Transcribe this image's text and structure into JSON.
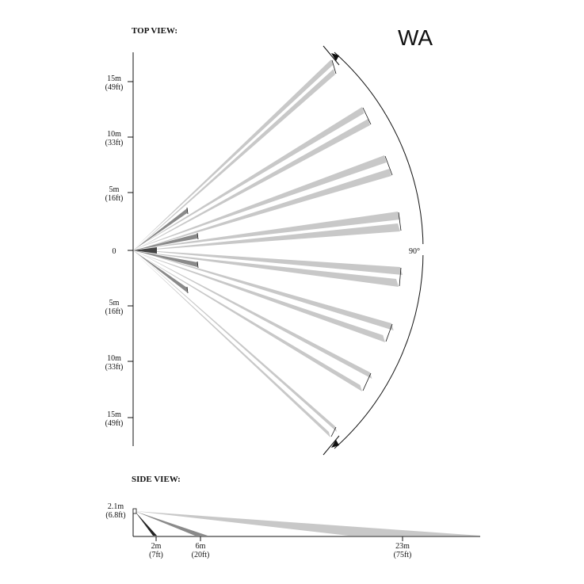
{
  "model_code": "WA",
  "top_view": {
    "heading": "TOP VIEW:",
    "angle_label": "90°",
    "ticks": [
      {
        "m": "15m",
        "ft": "(49ft)"
      },
      {
        "m": "10m",
        "ft": "(33ft)"
      },
      {
        "m": "5m",
        "ft": "(16ft)"
      },
      {
        "m": "0",
        "ft": ""
      },
      {
        "m": "5m",
        "ft": "(16ft)"
      },
      {
        "m": "10m",
        "ft": "(33ft)"
      },
      {
        "m": "15m",
        "ft": "(49ft)"
      }
    ]
  },
  "side_view": {
    "heading": "SIDE VIEW:",
    "mount_height": {
      "m": "2.1m",
      "ft": "(6.8ft)"
    },
    "ranges": [
      {
        "m": "2m",
        "ft": "(7ft)"
      },
      {
        "m": "6m",
        "ft": "(20ft)"
      },
      {
        "m": "23m",
        "ft": "(75ft)"
      }
    ]
  }
}
